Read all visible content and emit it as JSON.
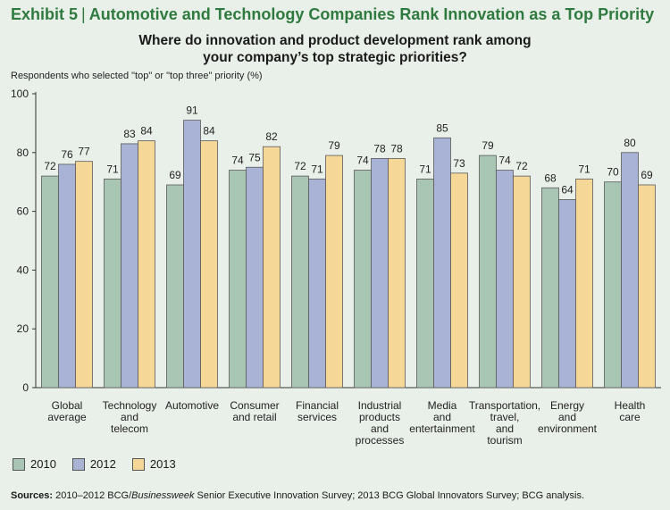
{
  "header": {
    "exhibit_label": "Exhibit 5",
    "separator": "|",
    "title": "Automotive and Technology Companies Rank Innovation as a Top Priority"
  },
  "subtitle": {
    "line1": "Where do innovation and product development rank among",
    "line2": "your company’s top strategic priorities?"
  },
  "colors": {
    "s2010": "#a8c6b3",
    "s2012": "#a9b3d6",
    "s2013": "#f5d898",
    "axis": "#333333",
    "title": "#2f7a3e"
  },
  "chart_data": {
    "type": "bar",
    "ylabel": "Respondents who selected \"top\" or \"top three\" priority (%)",
    "ylim": [
      0,
      100
    ],
    "yticks": [
      0,
      20,
      40,
      60,
      80,
      100
    ],
    "categories": [
      [
        "Global",
        "average"
      ],
      [
        "Technology",
        "and",
        "telecom"
      ],
      [
        "Automotive"
      ],
      [
        "Consumer",
        "and retail"
      ],
      [
        "Financial",
        "services"
      ],
      [
        "Industrial",
        "products",
        "and",
        "processes"
      ],
      [
        "Media",
        "and",
        "entertainment"
      ],
      [
        "Transportation,",
        "travel,",
        "and",
        "tourism"
      ],
      [
        "Energy",
        "and",
        "environment"
      ],
      [
        "Health",
        "care"
      ]
    ],
    "series": [
      {
        "name": "2010",
        "values": [
          72,
          71,
          69,
          74,
          72,
          74,
          71,
          79,
          68,
          70
        ]
      },
      {
        "name": "2012",
        "values": [
          76,
          83,
          91,
          75,
          71,
          78,
          85,
          74,
          64,
          80
        ]
      },
      {
        "name": "2013",
        "values": [
          77,
          84,
          84,
          82,
          79,
          78,
          73,
          72,
          71,
          69
        ]
      }
    ],
    "legend_position": "bottom-left",
    "grid": false
  },
  "legend": {
    "items": [
      "2010",
      "2012",
      "2013"
    ]
  },
  "source": {
    "label": "Sources:",
    "text_a": "2010–2012 BCG/",
    "text_italic": "Businessweek",
    "text_b": " Senior Executive Innovation Survey; 2013 BCG Global Innovators Survey; BCG analysis."
  }
}
